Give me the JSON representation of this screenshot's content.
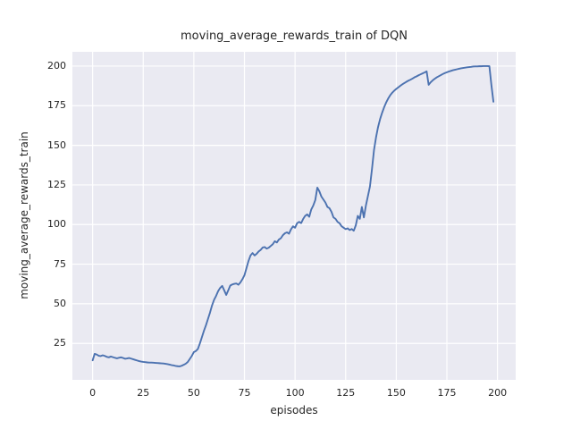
{
  "title": "moving_average_rewards_train of DQN",
  "xlabel": "episodes",
  "ylabel": "moving_average_rewards_train",
  "colors": {
    "line": "#4c72b0",
    "plot_background": "#eaeaf2",
    "grid": "#ffffff",
    "text": "#262626",
    "figure_background": "#ffffff"
  },
  "chart_data": {
    "type": "line",
    "title": "moving_average_rewards_train of DQN",
    "xlabel": "episodes",
    "ylabel": "moving_average_rewards_train",
    "legend": false,
    "grid": true,
    "x_ticks": [
      0,
      25,
      50,
      75,
      100,
      125,
      150,
      175,
      200
    ],
    "y_ticks": [
      25,
      50,
      75,
      100,
      125,
      150,
      175,
      200
    ],
    "xlim": [
      -10,
      209
    ],
    "ylim": [
      2,
      209
    ],
    "x_start": 0,
    "x_step": 1,
    "series": [
      {
        "name": "moving_average_rewards_train",
        "values": [
          14.3,
          18.4,
          18.0,
          17.2,
          17.0,
          17.5,
          17.1,
          16.5,
          16.2,
          16.7,
          16.3,
          15.9,
          15.6,
          15.9,
          16.2,
          15.8,
          15.3,
          15.5,
          15.8,
          15.4,
          15.0,
          14.6,
          14.2,
          13.8,
          13.5,
          13.3,
          13.2,
          13.0,
          12.9,
          12.9,
          12.8,
          12.7,
          12.6,
          12.5,
          12.4,
          12.3,
          12.1,
          11.9,
          11.6,
          11.3,
          11.1,
          10.8,
          10.6,
          10.5,
          10.9,
          11.5,
          12.2,
          13.3,
          15.2,
          17.1,
          19.5,
          20.2,
          21.5,
          25.0,
          29.0,
          33.0,
          36.5,
          40.5,
          44.5,
          49.0,
          52.5,
          55.0,
          58.0,
          60.0,
          61.3,
          58.5,
          55.6,
          58.5,
          61.5,
          62.2,
          62.6,
          62.8,
          62.0,
          63.5,
          65.5,
          68.0,
          72.5,
          77.0,
          80.5,
          82.0,
          80.5,
          81.5,
          83.0,
          84.0,
          85.5,
          85.8,
          84.8,
          85.4,
          86.5,
          87.6,
          89.5,
          88.7,
          90.5,
          91.4,
          93.3,
          94.5,
          95.1,
          94.2,
          97.0,
          98.9,
          98.0,
          100.8,
          101.7,
          100.9,
          103.5,
          105.5,
          106.4,
          104.9,
          109.5,
          112.0,
          115.5,
          123.3,
          121.0,
          117.7,
          115.8,
          113.9,
          111.1,
          110.3,
          108.0,
          104.5,
          103.6,
          101.7,
          100.8,
          98.9,
          98.0,
          97.1,
          97.6,
          96.5,
          97.2,
          96.1,
          99.5,
          105.5,
          103.6,
          111.1,
          104.5,
          112.0,
          118.0,
          124.0,
          135.0,
          147.0,
          155.0,
          161.5,
          166.5,
          170.5,
          174.0,
          177.0,
          179.5,
          181.6,
          183.2,
          184.5,
          185.6,
          186.6,
          187.6,
          188.5,
          189.3,
          190.1,
          190.8,
          191.4,
          192.1,
          192.9,
          193.5,
          194.2,
          194.8,
          195.4,
          196.0,
          196.7,
          188.2,
          189.8,
          191.0,
          192.0,
          192.9,
          193.6,
          194.3,
          195.0,
          195.6,
          196.1,
          196.6,
          197.0,
          197.4,
          197.7,
          198.0,
          198.3,
          198.6,
          198.8,
          199.0,
          199.2,
          199.4,
          199.5,
          199.7,
          199.8,
          199.8,
          199.9,
          199.9,
          200.0,
          200.0,
          200.0,
          199.9,
          188.0,
          177.5
        ]
      }
    ]
  }
}
